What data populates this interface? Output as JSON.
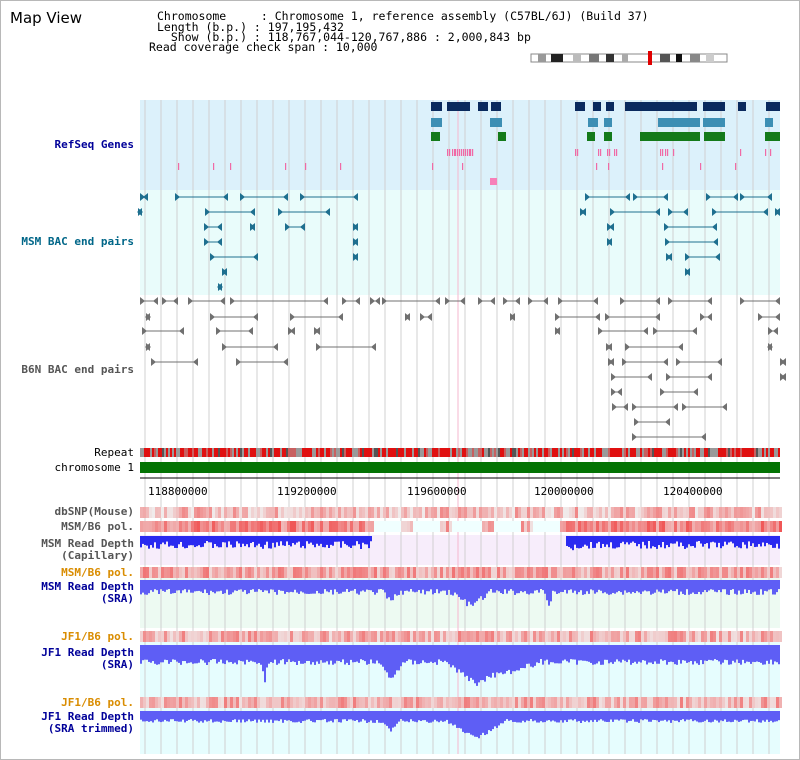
{
  "page": {
    "title": "Map View"
  },
  "info": {
    "chromosome": "Chromosome     : Chromosome 1, reference assembly (C57BL/6J) (Build 37)",
    "length": "Length (b.p.) : 197,195,432",
    "show": "  Show (b.p.) : 118,767,044-120,767,886 : 2,000,843 bp",
    "coverage": "Read coverage check span : 10,000"
  },
  "tracks": {
    "refseq": "RefSeq Genes",
    "msm_bac": "MSM BAC end pairs",
    "b6n_bac": "B6N BAC end pairs",
    "repeat": "Repeat",
    "chromosome": "chromosome 1",
    "dbsnp": "dbSNP(Mouse)",
    "msm_pol1": "MSM/B6 pol.",
    "msm_depth_cap_1": "MSM Read Depth",
    "msm_depth_cap_2": "(Capillary)",
    "msm_pol2": "MSM/B6 pol.",
    "msm_depth_sra_1": "MSM Read Depth",
    "msm_depth_sra_2": "(SRA)",
    "jf1_pol1": "JF1/B6 pol.",
    "jf1_depth_sra_1": "JF1 Read Depth",
    "jf1_depth_sra_2": "(SRA)",
    "jf1_pol2": "JF1/B6 pol.",
    "jf1_depth_trim_1": "JF1 Read Depth",
    "jf1_depth_trim_2": "(SRA trimmed)"
  },
  "axis": {
    "ticks": [
      "118800000",
      "119200000",
      "119600000",
      "120000000",
      "120400000"
    ]
  },
  "colors": {
    "refseq_bg": "#dcf1fb",
    "bac_bg": "#e9fcfb",
    "cap_bg": "#f7edfb",
    "sra_bg": "#edfaf2",
    "jf1_bg": "#e6fdfe",
    "gene_navy": "#0a2a5e",
    "gene_teal": "#3d8fb4",
    "gene_green": "#137a1a",
    "msm_bac": "#1e6f8f",
    "b6n_bac": "#707070",
    "chrom_green": "#037303",
    "depth_blue": "#2a2af0",
    "depth_sra_blue": "#5e5ef5",
    "label_blue": "#000099",
    "label_teal": "#006688",
    "label_orange": "#d98c00"
  }
}
